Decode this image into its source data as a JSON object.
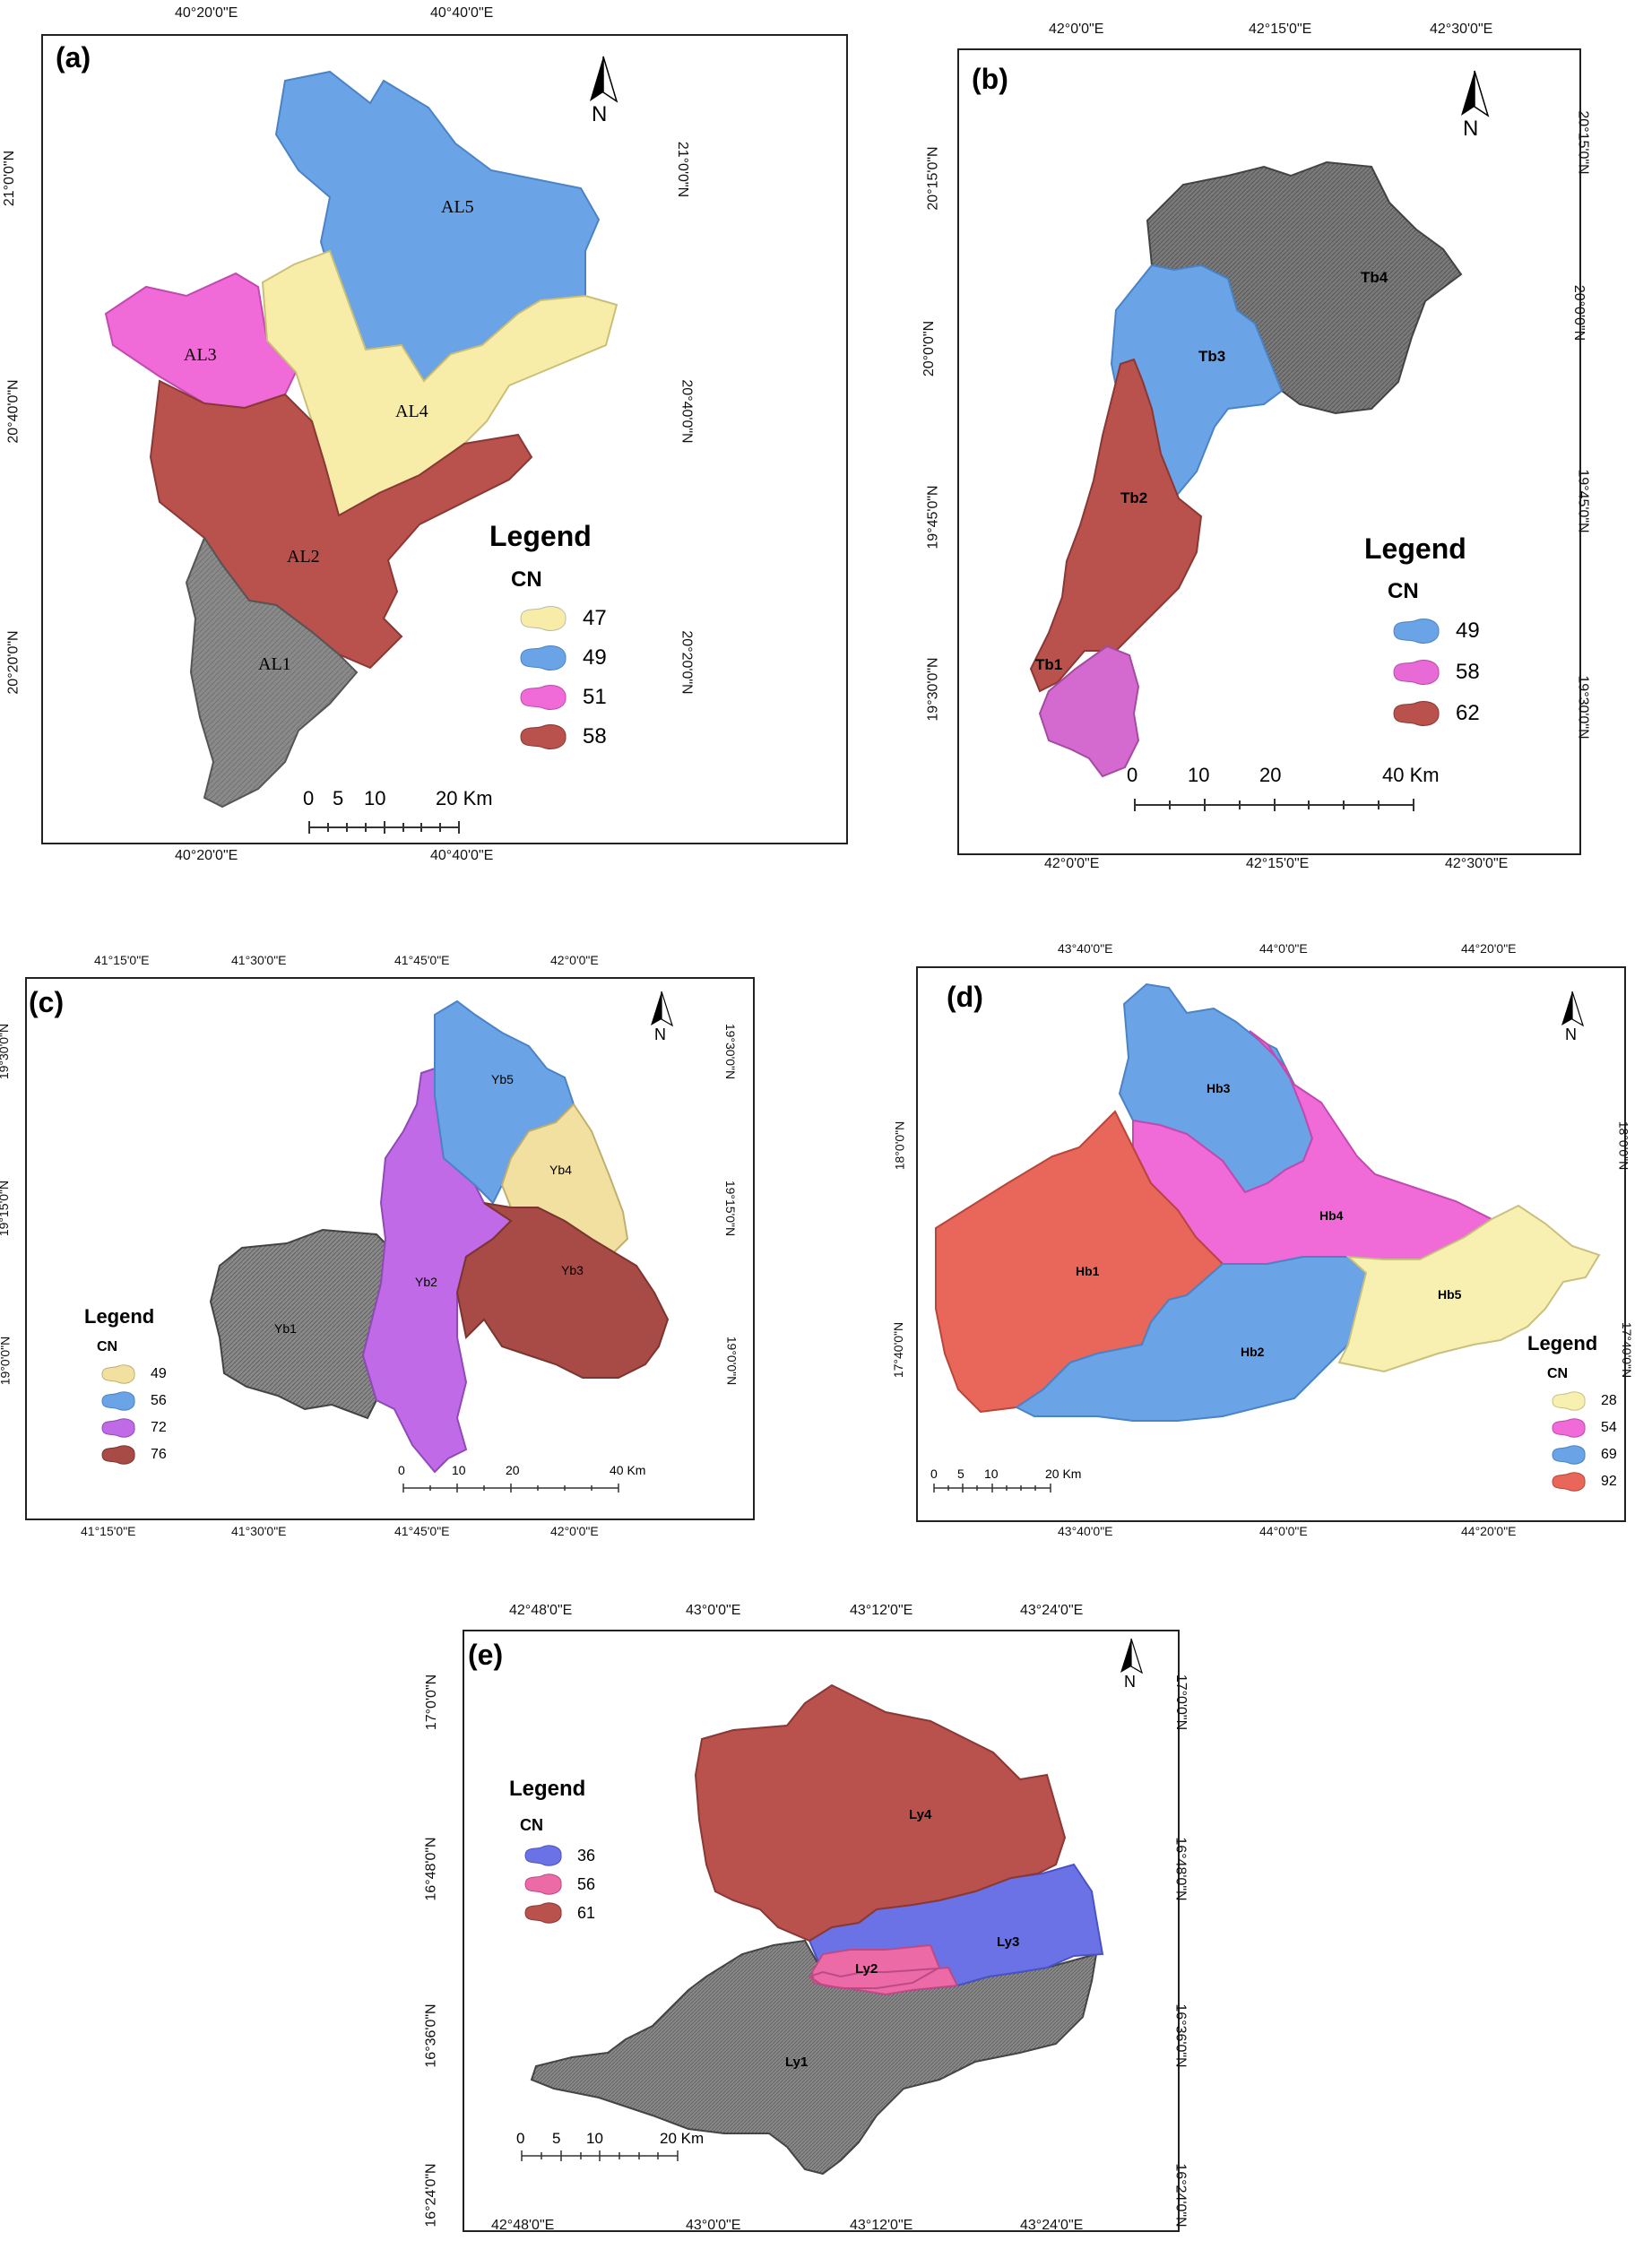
{
  "panels": [
    {
      "id": "a",
      "label": "(a)",
      "top_coords": [
        "40°20'0\"E",
        "40°40'0\"E"
      ],
      "bottom_coords": [
        "40°20'0\"E",
        "40°40'0\"E"
      ],
      "left_coords": [
        "21°0'0\"N",
        "20°40'0\"N",
        "20°20'0\"N"
      ],
      "right_coords": [
        "21°0'0\"N",
        "20°40'0\"N",
        "20°20'0\"N"
      ],
      "legend_title": "Legend",
      "legend_sub": "CN",
      "legend": [
        {
          "value": "47",
          "color": "#f7eda8"
        },
        {
          "value": "49",
          "color": "#6aa3e6"
        },
        {
          "value": "51",
          "color": "#f06ad8"
        },
        {
          "value": "58",
          "color": "#b9514d"
        }
      ],
      "scale": [
        "0",
        "5",
        "10",
        "20 Km"
      ],
      "north": "N",
      "subbasins": [
        {
          "name": "AL5",
          "color": "#6aa3e6"
        },
        {
          "name": "AL3",
          "color": "#f06ad8"
        },
        {
          "name": "AL4",
          "color": "#f7eda8"
        },
        {
          "name": "AL2",
          "color": "#b9514d"
        },
        {
          "name": "AL1",
          "color": "#8a8a8a"
        }
      ]
    },
    {
      "id": "b",
      "label": "(b)",
      "top_coords": [
        "42°0'0\"E",
        "42°15'0\"E",
        "42°30'0\"E"
      ],
      "bottom_coords": [
        "42°0'0\"E",
        "42°15'0\"E",
        "42°30'0\"E"
      ],
      "left_coords": [
        "20°15'0\"N",
        "20°0'0\"N",
        "19°45'0\"N",
        "19°30'0\"N"
      ],
      "right_coords": [
        "20°15'0\"N",
        "20°0'0\"N",
        "19°45'0\"N",
        "19°30'0\"N"
      ],
      "legend_title": "Legend",
      "legend_sub": "CN",
      "legend": [
        {
          "value": "49",
          "color": "#6aa3e6"
        },
        {
          "value": "58",
          "color": "#e86ad6"
        },
        {
          "value": "62",
          "color": "#b9514d"
        }
      ],
      "scale": [
        "0",
        "10",
        "20",
        "40 Km"
      ],
      "north": "N",
      "subbasins": [
        {
          "name": "Tb4",
          "color": "#7a7a7a"
        },
        {
          "name": "Tb3",
          "color": "#6aa3e6"
        },
        {
          "name": "Tb2",
          "color": "#b9514d"
        },
        {
          "name": "Tb1",
          "color": "#d46ad0"
        }
      ]
    },
    {
      "id": "c",
      "label": "(c)",
      "top_coords": [
        "41°15'0\"E",
        "41°30'0\"E",
        "41°45'0\"E",
        "42°0'0\"E"
      ],
      "bottom_coords": [
        "41°15'0\"E",
        "41°30'0\"E",
        "41°45'0\"E",
        "42°0'0\"E"
      ],
      "left_coords": [
        "19°30'0\"N",
        "19°15'0\"N",
        "19°0'0\"N"
      ],
      "right_coords": [
        "19°30'0\"N",
        "19°15'0\"N",
        "19°0'0\"N"
      ],
      "legend_title": "Legend",
      "legend_sub": "CN",
      "legend": [
        {
          "value": "49",
          "color": "#f2e0a0"
        },
        {
          "value": "56",
          "color": "#6aa3e6"
        },
        {
          "value": "72",
          "color": "#c06ae8"
        },
        {
          "value": "76",
          "color": "#a84a45"
        }
      ],
      "scale": [
        "0",
        "10",
        "20",
        "40 Km"
      ],
      "north": "N",
      "subbasins": [
        {
          "name": "Yb5",
          "color": "#6aa3e6"
        },
        {
          "name": "Yb4",
          "color": "#f2e0a0"
        },
        {
          "name": "Yb2",
          "color": "#c06ae8"
        },
        {
          "name": "Yb3",
          "color": "#a84a45"
        },
        {
          "name": "Yb1",
          "color": "#8a8a8a"
        }
      ]
    },
    {
      "id": "d",
      "label": "(d)",
      "top_coords": [
        "43°40'0\"E",
        "44°0'0\"E",
        "44°20'0\"E"
      ],
      "bottom_coords": [
        "43°40'0\"E",
        "44°0'0\"E",
        "44°20'0\"E"
      ],
      "left_coords": [
        "18°0'0\"N",
        "17°40'0\"N"
      ],
      "right_coords": [
        "18°0'0\"N",
        "17°40'0\"N"
      ],
      "legend_title": "Legend",
      "legend_sub": "CN",
      "legend": [
        {
          "value": "28",
          "color": "#f7f0b0"
        },
        {
          "value": "54",
          "color": "#f06ad8"
        },
        {
          "value": "69",
          "color": "#6aa3e6"
        },
        {
          "value": "92",
          "color": "#e8665a"
        }
      ],
      "scale": [
        "0",
        "5",
        "10",
        "20 Km"
      ],
      "north": "N",
      "subbasins": [
        {
          "name": "Hb3",
          "color": "#6aa3e6"
        },
        {
          "name": "Hb4",
          "color": "#f06ad8"
        },
        {
          "name": "Hb1",
          "color": "#e8665a"
        },
        {
          "name": "Hb2",
          "color": "#6aa3e6"
        },
        {
          "name": "Hb5",
          "color": "#f7f0b0"
        }
      ]
    },
    {
      "id": "e",
      "label": "(e)",
      "top_coords": [
        "42°48'0\"E",
        "43°0'0\"E",
        "43°12'0\"E",
        "43°24'0\"E"
      ],
      "bottom_coords": [
        "42°48'0\"E",
        "43°0'0\"E",
        "43°12'0\"E",
        "43°24'0\"E"
      ],
      "left_coords": [
        "17°0'0\"N",
        "16°48'0\"N",
        "16°36'0\"N",
        "16°24'0\"N"
      ],
      "right_coords": [
        "17°0'0\"N",
        "16°48'0\"N",
        "16°36'0\"N",
        "16°24'0\"N"
      ],
      "legend_title": "Legend",
      "legend_sub": "CN",
      "legend": [
        {
          "value": "36",
          "color": "#6a72e6"
        },
        {
          "value": "56",
          "color": "#ec6aa6"
        },
        {
          "value": "61",
          "color": "#b9514d"
        }
      ],
      "scale": [
        "0",
        "5",
        "10",
        "20 Km"
      ],
      "north": "N",
      "subbasins": [
        {
          "name": "Ly4",
          "color": "#b9514d"
        },
        {
          "name": "Ly3",
          "color": "#6a72e6"
        },
        {
          "name": "Ly2",
          "color": "#ec6aa6"
        },
        {
          "name": "Ly1",
          "color": "#8a8a8a"
        }
      ]
    }
  ]
}
